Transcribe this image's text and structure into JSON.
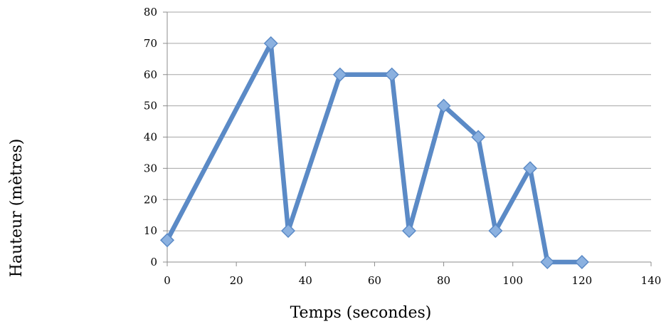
{
  "chart_data": {
    "type": "line",
    "title": "",
    "xlabel": "Temps (secondes)",
    "ylabel": "Hauteur (mètres)",
    "xlim": [
      0,
      140
    ],
    "ylim": [
      0,
      80
    ],
    "x_ticks": [
      "0",
      "20",
      "40",
      "60",
      "80",
      "100",
      "120",
      "140"
    ],
    "y_ticks": [
      "0",
      "10",
      "20",
      "30",
      "40",
      "50",
      "60",
      "70",
      "80"
    ],
    "grid": true,
    "legend": "none",
    "series": [
      {
        "x": [
          0,
          30,
          35,
          50,
          65,
          70,
          80,
          90,
          95,
          105,
          110,
          120
        ],
        "values": [
          7,
          70,
          10,
          60,
          60,
          10,
          50,
          40,
          10,
          30,
          0,
          0
        ],
        "color": "#5b8ac6",
        "marker": "diamond",
        "marker_color": "#8bb1e0"
      }
    ]
  }
}
